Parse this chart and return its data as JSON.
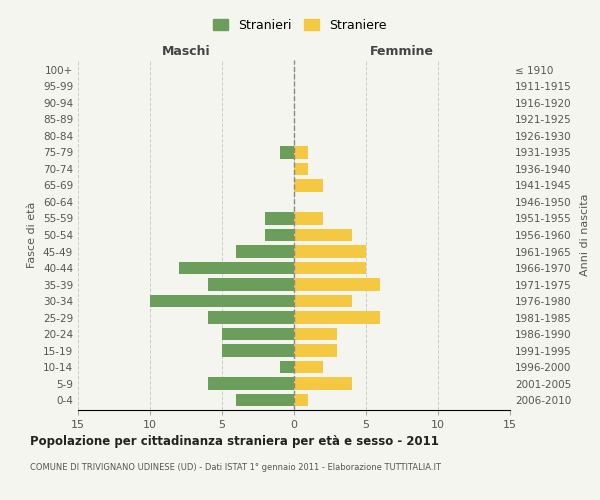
{
  "age_groups": [
    "100+",
    "95-99",
    "90-94",
    "85-89",
    "80-84",
    "75-79",
    "70-74",
    "65-69",
    "60-64",
    "55-59",
    "50-54",
    "45-49",
    "40-44",
    "35-39",
    "30-34",
    "25-29",
    "20-24",
    "15-19",
    "10-14",
    "5-9",
    "0-4"
  ],
  "birth_years": [
    "≤ 1910",
    "1911-1915",
    "1916-1920",
    "1921-1925",
    "1926-1930",
    "1931-1935",
    "1936-1940",
    "1941-1945",
    "1946-1950",
    "1951-1955",
    "1956-1960",
    "1961-1965",
    "1966-1970",
    "1971-1975",
    "1976-1980",
    "1981-1985",
    "1986-1990",
    "1991-1995",
    "1996-2000",
    "2001-2005",
    "2006-2010"
  ],
  "maschi": [
    0,
    0,
    0,
    0,
    0,
    1,
    0,
    0,
    0,
    2,
    2,
    4,
    8,
    6,
    10,
    6,
    5,
    5,
    1,
    6,
    4
  ],
  "femmine": [
    0,
    0,
    0,
    0,
    0,
    1,
    1,
    2,
    0,
    2,
    4,
    5,
    5,
    6,
    4,
    6,
    3,
    3,
    2,
    4,
    1
  ],
  "maschi_color": "#6a9e5a",
  "femmine_color": "#f5c842",
  "title": "Popolazione per cittadinanza straniera per età e sesso - 2011",
  "subtitle": "COMUNE DI TRIVIGNANO UDINESE (UD) - Dati ISTAT 1° gennaio 2011 - Elaborazione TUTTITALIA.IT",
  "xlabel_left": "Maschi",
  "xlabel_right": "Femmine",
  "ylabel_left": "Fasce di età",
  "ylabel_right": "Anni di nascita",
  "legend_maschi": "Stranieri",
  "legend_femmine": "Straniere",
  "xlim": 15,
  "background_color": "#f5f5f0",
  "grid_color": "#cccccc",
  "bar_height": 0.75
}
